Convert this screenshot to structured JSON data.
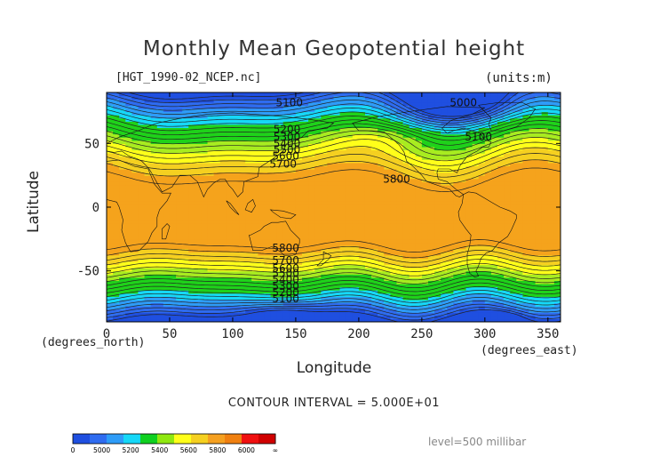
{
  "figure": {
    "title": "Monthly Mean Geopotential height",
    "file_label": "[HGT_1990-02_NCEP.nc]",
    "units_label": "(units:m)",
    "x_unit_label": "(degrees_east)",
    "y_unit_label": "(degrees_north)",
    "contour_interval": "CONTOUR INTERVAL = 5.000E+01",
    "level_label": "level=500 millibar"
  },
  "chart_data": {
    "type": "heatmap",
    "title": "Monthly Mean Geopotential height",
    "xlabel": "Longitude",
    "ylabel": "Latitude",
    "xlim": [
      0,
      360
    ],
    "ylim": [
      -90,
      90
    ],
    "x_ticks": [
      0,
      50,
      100,
      150,
      200,
      250,
      300,
      350
    ],
    "y_ticks": [
      -50,
      0,
      50
    ],
    "contour_labels": [
      {
        "text": "5100",
        "lon": 145,
        "lat": 82
      },
      {
        "text": "5200",
        "lon": 143,
        "lat": 61
      },
      {
        "text": "5300",
        "lon": 143,
        "lat": 55
      },
      {
        "text": "5400",
        "lon": 143,
        "lat": 50
      },
      {
        "text": "5500",
        "lon": 143,
        "lat": 45
      },
      {
        "text": "5600",
        "lon": 142,
        "lat": 40
      },
      {
        "text": "5700",
        "lon": 140,
        "lat": 34
      },
      {
        "text": "5800",
        "lon": 230,
        "lat": 22
      },
      {
        "text": "5000",
        "lon": 283,
        "lat": 82
      },
      {
        "text": "5100",
        "lon": 295,
        "lat": 55
      },
      {
        "text": "5800",
        "lon": 142,
        "lat": -32
      },
      {
        "text": "5700",
        "lon": 142,
        "lat": -42
      },
      {
        "text": "5600",
        "lon": 142,
        "lat": -48
      },
      {
        "text": "5500",
        "lon": 142,
        "lat": -52
      },
      {
        "text": "5400",
        "lon": 142,
        "lat": -57
      },
      {
        "text": "5300",
        "lon": 142,
        "lat": -62
      },
      {
        "text": "5200",
        "lon": 142,
        "lat": -67
      },
      {
        "text": "5100",
        "lon": 142,
        "lat": -72
      }
    ],
    "colorbar": {
      "tick_labels": [
        "0",
        "5000",
        "5200",
        "5400",
        "5600",
        "5800",
        "6000",
        "∞"
      ],
      "colors": [
        "#1f4fe0",
        "#2f6cf0",
        "#2e9cf8",
        "#16d8f8",
        "#0fd020",
        "#8fe810",
        "#ffff1a",
        "#f5d020",
        "#f5a020",
        "#f08010",
        "#f01010",
        "#d00000"
      ]
    },
    "level_colors": [
      {
        "min": 0,
        "max": 5000,
        "color": "#1f4fe0"
      },
      {
        "min": 5000,
        "max": 5100,
        "color": "#2f6cf0"
      },
      {
        "min": 5100,
        "max": 5200,
        "color": "#2e9cf8"
      },
      {
        "min": 5200,
        "max": 5300,
        "color": "#16d8f8"
      },
      {
        "min": 5300,
        "max": 5500,
        "color": "#1fd21a"
      },
      {
        "min": 5500,
        "max": 5600,
        "color": "#a8ec20"
      },
      {
        "min": 5600,
        "max": 5700,
        "color": "#ffff1a"
      },
      {
        "min": 5700,
        "max": 5800,
        "color": "#f5d020"
      },
      {
        "min": 5800,
        "max": 6000,
        "color": "#f5a31c"
      }
    ],
    "field_model": {
      "description_values_m": {
        "tropics": 5860,
        "midlat_north_45": 5500,
        "polar_north": 5100,
        "midlat_south_-45": 5600,
        "polar_south": 5100
      },
      "north_trough_center": {
        "lon": 285,
        "lat": 80,
        "value": 4980
      },
      "south_low_center": {
        "lon": 140,
        "lat": -83,
        "value": 4980
      }
    }
  }
}
